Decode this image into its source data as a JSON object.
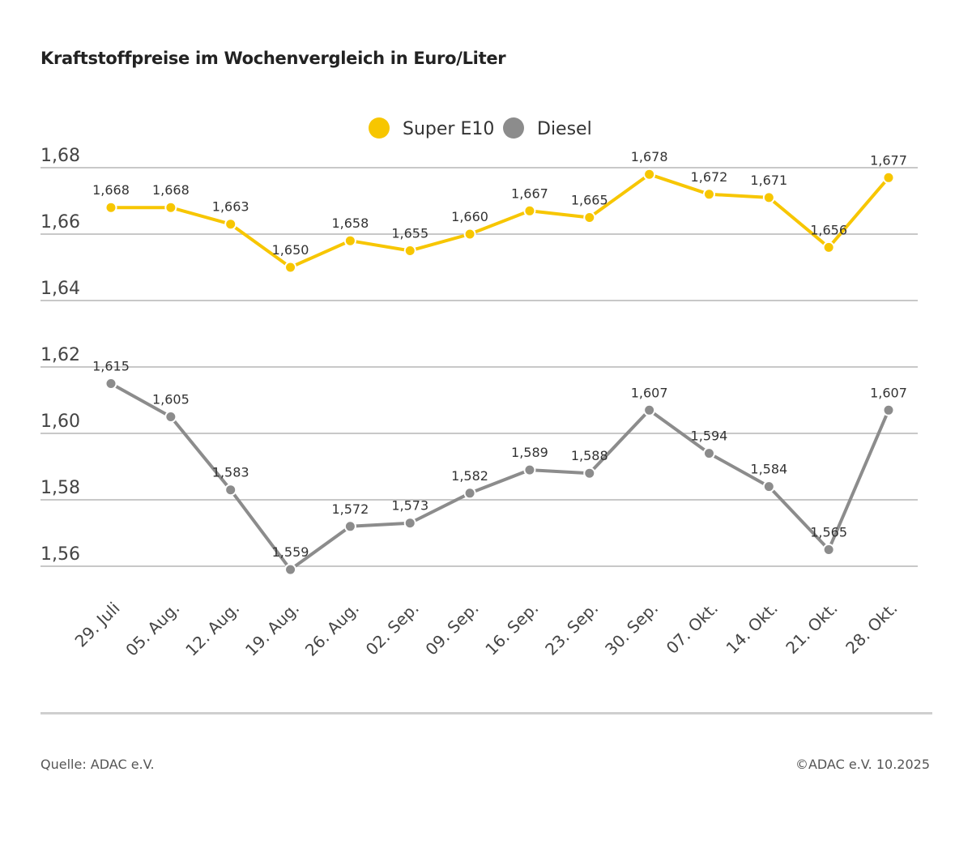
{
  "chart_data": {
    "type": "line",
    "title": "Kraftstoffpreise im Wochenvergleich in Euro/Liter",
    "categories": [
      "29. Juli",
      "05. Aug.",
      "12. Aug.",
      "19. Aug.",
      "26. Aug.",
      "02. Sep.",
      "09. Sep.",
      "16. Sep.",
      "23. Sep.",
      "30. Sep.",
      "07. Okt.",
      "14. Okt.",
      "21. Okt.",
      "28. Okt."
    ],
    "series": [
      {
        "name": "Super E10",
        "color": "#F7C600",
        "values": [
          1.668,
          1.668,
          1.663,
          1.65,
          1.658,
          1.655,
          1.66,
          1.667,
          1.665,
          1.678,
          1.672,
          1.671,
          1.656,
          1.677
        ]
      },
      {
        "name": "Diesel",
        "color": "#8C8C8C",
        "values": [
          1.615,
          1.605,
          1.583,
          1.559,
          1.572,
          1.573,
          1.582,
          1.589,
          1.588,
          1.607,
          1.594,
          1.584,
          1.565,
          1.607
        ]
      }
    ],
    "yticks": [
      1.56,
      1.58,
      1.6,
      1.62,
      1.64,
      1.66,
      1.68
    ],
    "ylim": [
      1.56,
      1.68
    ],
    "grid": true,
    "legend_position": "top-center",
    "xlabel": "",
    "ylabel": ""
  },
  "footer": {
    "source": "Quelle: ADAC e.V.",
    "copyright": "©ADAC e.V. 10.2025"
  }
}
